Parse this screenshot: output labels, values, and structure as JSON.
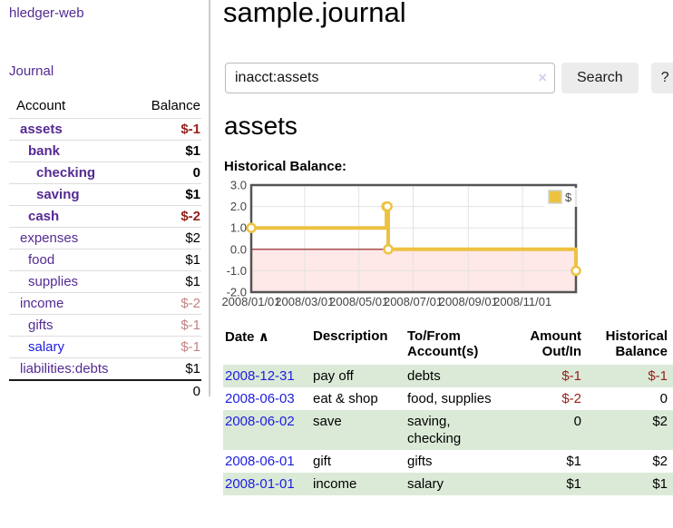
{
  "app": {
    "brand": "hledger-web",
    "nav_journal": "Journal"
  },
  "sidebar": {
    "columns": {
      "account": "Account",
      "balance": "Balance"
    },
    "accounts": [
      {
        "name": "assets",
        "depth": 1,
        "balance": "$-1",
        "bold": true,
        "negative": "strong",
        "link": "purple"
      },
      {
        "name": "bank",
        "depth": 2,
        "balance": "$1",
        "bold": true,
        "negative": "none",
        "link": "purple"
      },
      {
        "name": "checking",
        "depth": 3,
        "balance": "0",
        "bold": true,
        "negative": "none",
        "link": "purple"
      },
      {
        "name": "saving",
        "depth": 3,
        "balance": "$1",
        "bold": true,
        "negative": "none",
        "link": "purple"
      },
      {
        "name": "cash",
        "depth": 2,
        "balance": "$-2",
        "bold": true,
        "negative": "strong",
        "link": "purple"
      },
      {
        "name": "expenses",
        "depth": 1,
        "balance": "$2",
        "bold": false,
        "negative": "none",
        "link": "purple"
      },
      {
        "name": "food",
        "depth": 2,
        "balance": "$1",
        "bold": false,
        "negative": "none",
        "link": "purple"
      },
      {
        "name": "supplies",
        "depth": 2,
        "balance": "$1",
        "bold": false,
        "negative": "none",
        "link": "purple"
      },
      {
        "name": "income",
        "depth": 1,
        "balance": "$-2",
        "bold": false,
        "negative": "soft",
        "link": "purple"
      },
      {
        "name": "gifts",
        "depth": 2,
        "balance": "$-1",
        "bold": false,
        "negative": "soft",
        "link": "purple"
      },
      {
        "name": "salary",
        "depth": 2,
        "balance": "$-1",
        "bold": false,
        "negative": "soft",
        "link": "blue"
      },
      {
        "name": "liabilities:debts",
        "depth": 1,
        "balance": "$1",
        "bold": false,
        "negative": "none",
        "link": "purple"
      }
    ],
    "total": "0"
  },
  "header": {
    "title": "sample.journal"
  },
  "search": {
    "value": "inacct:assets",
    "clear_icon": "×",
    "button": "Search",
    "help_button": "?"
  },
  "main": {
    "account_heading": "assets",
    "chart_label": "Historical Balance:"
  },
  "chart_data": {
    "type": "line",
    "title": "Historical Balance:",
    "series": [
      {
        "name": "$",
        "color": "#edc240",
        "step": true,
        "points": [
          [
            "2008-01-01",
            1
          ],
          [
            "2008-06-01",
            2
          ],
          [
            "2008-06-02",
            2
          ],
          [
            "2008-06-03",
            0
          ],
          [
            "2008-12-31",
            -1
          ]
        ]
      }
    ],
    "x_range": [
      "2008-01-01",
      "2008-12-31"
    ],
    "x_tick_labels": [
      "2008/01/01",
      "2008/03/01",
      "2008/05/01",
      "2008/07/01",
      "2008/09/01",
      "2008/11/01"
    ],
    "y_tick_labels": [
      "3.0",
      "2.0",
      "1.0",
      "0.0",
      "-1.0",
      "-2.0"
    ],
    "y_ticks": [
      3,
      2,
      1,
      0,
      -1,
      -2
    ],
    "ylim": [
      -2,
      3
    ],
    "grid": true,
    "legend": {
      "label": "$",
      "position": "top-right"
    },
    "negative_region_fill": "rgba(255,0,0,0.09)",
    "zero_line_color": "#8b1a1a",
    "border_color": "#545454",
    "gridline_color": "#e3e3e3",
    "tick_text_color": "#444444"
  },
  "register": {
    "columns": [
      "Date",
      "Description",
      "To/From Account(s)",
      "Amount Out/In",
      "Historical Balance"
    ],
    "sort_icon": "∧",
    "rows": [
      {
        "date": "2008-12-31",
        "description": "pay off",
        "accounts": "debts",
        "amount": "$-1",
        "balance": "$-1",
        "amount_negative": true,
        "balance_negative": true
      },
      {
        "date": "2008-06-03",
        "description": "eat & shop",
        "accounts": "food, supplies",
        "amount": "$-2",
        "balance": "0",
        "amount_negative": true,
        "balance_negative": false
      },
      {
        "date": "2008-06-02",
        "description": "save",
        "accounts": "saving, checking",
        "amount": "0",
        "balance": "$2",
        "amount_negative": false,
        "balance_negative": false
      },
      {
        "date": "2008-06-01",
        "description": "gift",
        "accounts": "gifts",
        "amount": "$1",
        "balance": "$2",
        "amount_negative": false,
        "balance_negative": false
      },
      {
        "date": "2008-01-01",
        "description": "income",
        "accounts": "salary",
        "amount": "$1",
        "balance": "$1",
        "amount_negative": false,
        "balance_negative": false
      }
    ]
  },
  "colors": {
    "link_purple": "#552a93",
    "link_blue": "#1d1de0",
    "negative_strong": "#941f1a",
    "negative_soft": "#c28383",
    "row_shade_green": "#dbead7",
    "button_gray": "#ececec",
    "series_gold": "#edc240"
  }
}
